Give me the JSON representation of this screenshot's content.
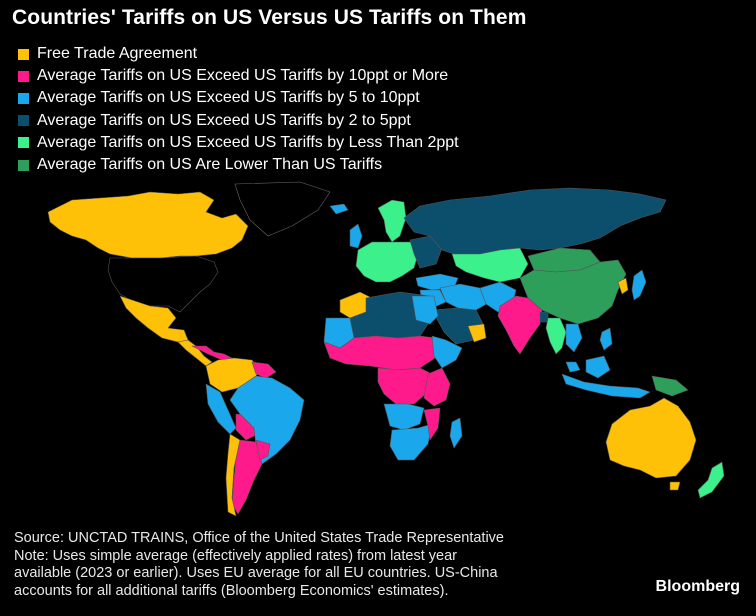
{
  "title": "Countries' Tariffs on US Versus US Tariffs on Them",
  "colors": {
    "fta": "#FFC107",
    "ge10": "#FF1A8C",
    "5to10": "#1AA7EC",
    "2to5": "#0B4F6C",
    "lt2": "#3CF08C",
    "lower": "#2E9E5B",
    "nodata": "#000000",
    "border": "#555555"
  },
  "legend": [
    {
      "label": "Free Trade Agreement",
      "color": "#FFC107"
    },
    {
      "label": "Average Tariffs on US Exceed US Tariffs by 10ppt or More",
      "color": "#FF1A8C"
    },
    {
      "label": "Average Tariffs on US Exceed US Tariffs by 5 to 10ppt",
      "color": "#1AA7EC"
    },
    {
      "label": "Average Tariffs on US Exceed US Tariffs by 2 to 5ppt",
      "color": "#0B4F6C"
    },
    {
      "label": "Average Tariffs on US Exceed US Tariffs by Less Than 2ppt",
      "color": "#3CF08C"
    },
    {
      "label": "Average Tariffs on US Are Lower Than US Tariffs",
      "color": "#2E9E5B"
    }
  ],
  "footer": {
    "source": "Source: UNCTAD TRAINS, Office of the United States Trade Representative",
    "note_lines": [
      "Note: Uses simple average (effectively applied rates) from latest year",
      "available (2023 or earlier). Uses EU average for all EU countries. US-China",
      "accounts for all additional tariffs (Bloomberg Economics' estimates)."
    ]
  },
  "brand": "Bloomberg"
}
